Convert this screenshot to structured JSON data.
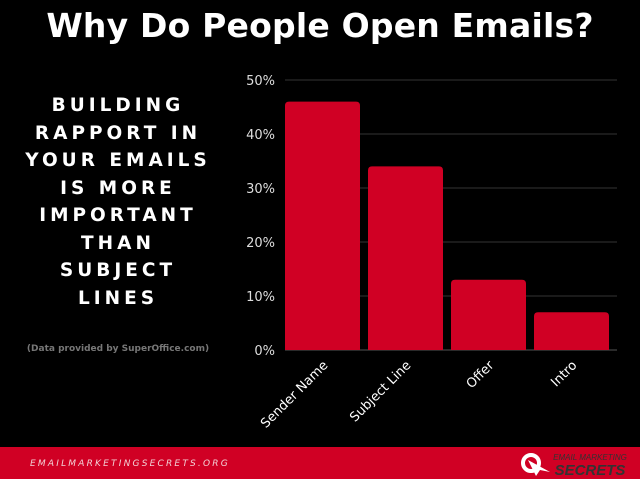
{
  "title": "Why Do People Open Emails?",
  "headline": [
    "BUILDING",
    "RAPPORT IN",
    "YOUR EMAILS",
    "IS MORE",
    "IMPORTANT",
    "THAN",
    "SUBJECT",
    "LINES"
  ],
  "source": "(Data provided by SuperOffice.com)",
  "footer": {
    "site": "EMAILMARKETINGSECRETS.ORG",
    "logo_line1": "EMAIL MARKETING",
    "logo_line2": "SECRETS"
  },
  "colors": {
    "bar": "#d00024",
    "background": "#000000",
    "grid": "#333333"
  },
  "chart_data": {
    "type": "bar",
    "categories": [
      "Sender Name",
      "Subject Line",
      "Offer",
      "Intro"
    ],
    "values": [
      46,
      34,
      13,
      7
    ],
    "ylim": [
      0,
      50
    ],
    "yticks": [
      "0%",
      "10%",
      "20%",
      "30%",
      "40%",
      "50%"
    ],
    "grid": true,
    "xlabel": "",
    "ylabel": ""
  }
}
